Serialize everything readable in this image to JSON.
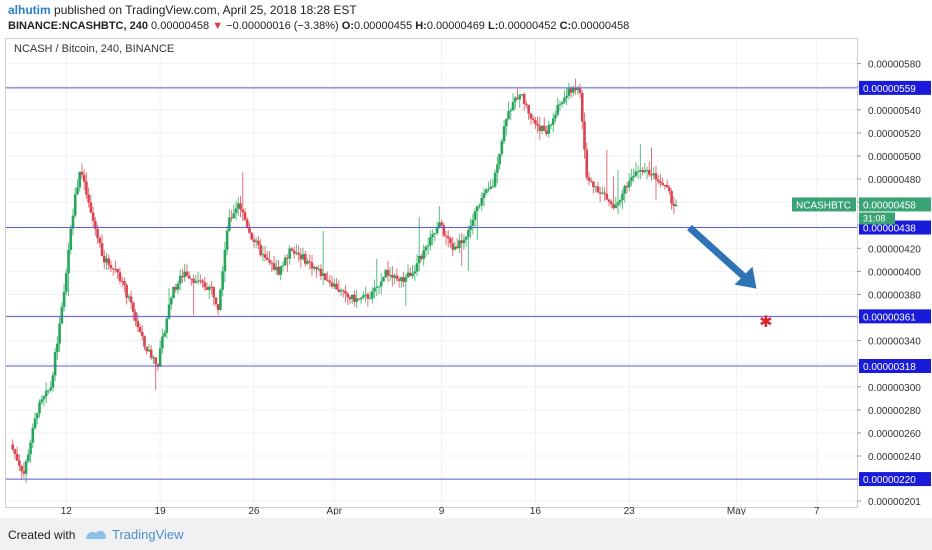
{
  "header": {
    "user": "alhutim",
    "published_text": "published on TradingView.com, April 25, 2018 18:28 EST",
    "symbol_label": "BINANCE:NCASHBTC, 240",
    "last": "0.00000458",
    "change_arrow": "▼",
    "change": "−0.00000016 (−3.38%)",
    "o_label": "O:",
    "o": "0.00000455",
    "h_label": "H:",
    "h": "0.00000469",
    "l_label": "L:",
    "l": "0.00000452",
    "c_label": "C:",
    "c": "0.00000458"
  },
  "footer": {
    "created_with": "Created with",
    "brand": "TradingView",
    "logo_icon": "tradingview-logo-icon"
  },
  "colors": {
    "up": "#26a65b",
    "down": "#d9444f",
    "level_line": "#5b5bd6",
    "level_label_bg": "#1a1adb",
    "price_tag_bg": "#3aa376",
    "arrow": "#2e74b5",
    "star": "#e0202a"
  },
  "chart_data": {
    "type": "candlestick",
    "title": "NCASH / Bitcoin, 240, BINANCE",
    "symbol_tag": "NCASHBTC",
    "last_price_label": "0.00000458",
    "countdown": "31:08",
    "ylim": [
      2e-06,
      5.9e-06
    ],
    "y_ticks": [
      "0.00000580",
      "0.00000560",
      "0.00000540",
      "0.00000520",
      "0.00000500",
      "0.00000480",
      "0.00000460",
      "0.00000440",
      "0.00000420",
      "0.00000400",
      "0.00000380",
      "0.00000360",
      "0.00000340",
      "0.00000320",
      "0.00000300",
      "0.00000280",
      "0.00000260",
      "0.00000240",
      "0.00000220",
      "0.00000201"
    ],
    "y_tick_values": [
      5.8e-06,
      5.6e-06,
      5.4e-06,
      5.2e-06,
      5e-06,
      4.8e-06,
      4.6e-06,
      4.4e-06,
      4.2e-06,
      4e-06,
      3.8e-06,
      3.6e-06,
      3.4e-06,
      3.2e-06,
      3e-06,
      2.8e-06,
      2.6e-06,
      2.4e-06,
      2.2e-06,
      2.01e-06
    ],
    "x_ticks": [
      {
        "label": "12",
        "day": 12
      },
      {
        "label": "19",
        "day": 19
      },
      {
        "label": "26",
        "day": 26
      },
      {
        "label": "Apr",
        "day": 32
      },
      {
        "label": "9",
        "day": 40
      },
      {
        "label": "16",
        "day": 47
      },
      {
        "label": "23",
        "day": 54
      },
      {
        "label": "May",
        "day": 62
      },
      {
        "label": "7",
        "day": 68
      }
    ],
    "x_range_days": [
      7.5,
      71.0
    ],
    "levels": [
      {
        "value": 5.59e-06,
        "label": "0.00000559"
      },
      {
        "value": 4.38e-06,
        "label": "0.00000438"
      },
      {
        "value": 3.61e-06,
        "label": "0.00000361"
      },
      {
        "value": 3.18e-06,
        "label": "0.00000318"
      },
      {
        "value": 2.2e-06,
        "label": "0.00000220"
      }
    ],
    "anchors": [
      [
        8.0,
        2.5
      ],
      [
        9.0,
        2.25
      ],
      [
        10.0,
        2.8
      ],
      [
        11.0,
        3.0
      ],
      [
        11.5,
        3.4
      ],
      [
        12.0,
        3.8
      ],
      [
        12.5,
        4.4
      ],
      [
        13.2,
        4.9
      ],
      [
        14.0,
        4.5
      ],
      [
        15.0,
        4.1
      ],
      [
        16.0,
        4.0
      ],
      [
        17.0,
        3.7
      ],
      [
        18.0,
        3.35
      ],
      [
        19.0,
        3.2
      ],
      [
        20.0,
        3.8
      ],
      [
        21.0,
        4.0
      ],
      [
        22.0,
        3.9
      ],
      [
        23.0,
        3.85
      ],
      [
        23.5,
        3.7
      ],
      [
        24.2,
        4.4
      ],
      [
        25.0,
        4.6
      ],
      [
        26.0,
        4.3
      ],
      [
        27.0,
        4.1
      ],
      [
        28.0,
        4.0
      ],
      [
        29.0,
        4.2
      ],
      [
        30.0,
        4.1
      ],
      [
        31.0,
        4.0
      ],
      [
        32.0,
        3.9
      ],
      [
        33.0,
        3.78
      ],
      [
        34.0,
        3.75
      ],
      [
        35.0,
        3.8
      ],
      [
        36.0,
        4.0
      ],
      [
        37.0,
        3.9
      ],
      [
        38.0,
        4.0
      ],
      [
        39.0,
        4.2
      ],
      [
        40.0,
        4.4
      ],
      [
        41.0,
        4.2
      ],
      [
        42.0,
        4.3
      ],
      [
        43.0,
        4.6
      ],
      [
        44.0,
        4.75
      ],
      [
        45.0,
        5.35
      ],
      [
        46.0,
        5.55
      ],
      [
        47.0,
        5.3
      ],
      [
        48.0,
        5.2
      ],
      [
        49.0,
        5.45
      ],
      [
        50.0,
        5.6
      ],
      [
        50.5,
        5.55
      ],
      [
        51.0,
        4.8
      ],
      [
        52.0,
        4.7
      ],
      [
        53.0,
        4.55
      ],
      [
        54.0,
        4.75
      ],
      [
        55.0,
        4.9
      ],
      [
        56.0,
        4.85
      ],
      [
        57.0,
        4.7
      ],
      [
        57.5,
        4.58
      ]
    ],
    "annotations": {
      "arrow_from": {
        "day": 58.5,
        "value": 4.38e-06
      },
      "arrow_to": {
        "day": 63.5,
        "value": 3.85e-06
      },
      "star": {
        "day": 64.2,
        "value": 3.56e-06
      }
    }
  }
}
